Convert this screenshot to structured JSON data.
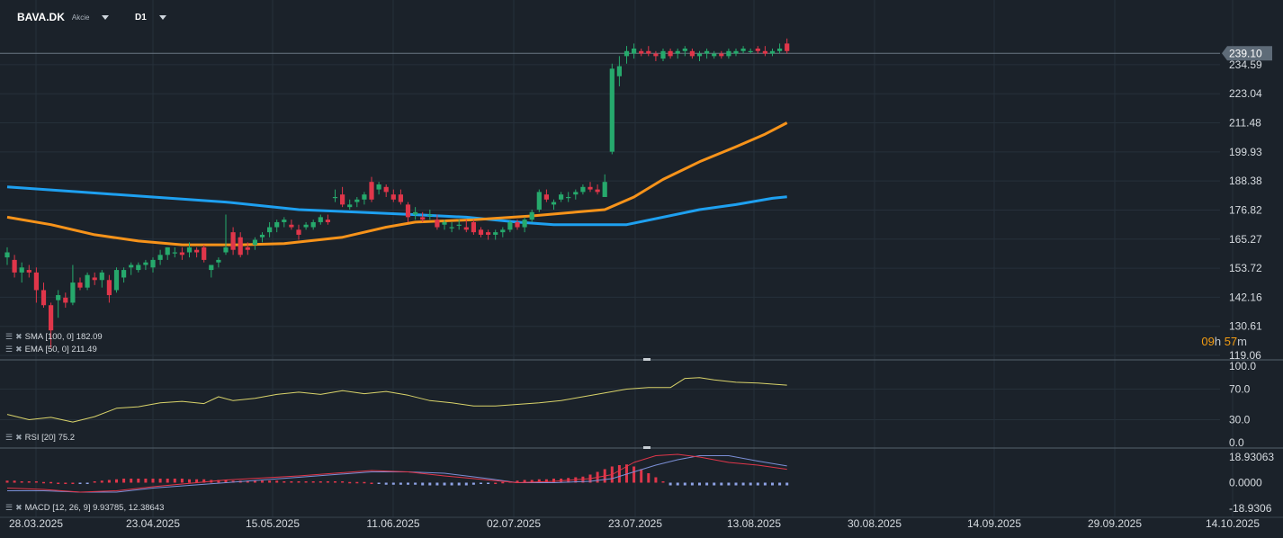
{
  "header": {
    "symbol": "BAVA.DK",
    "asset_type": "Akcie",
    "timeframe": "D1"
  },
  "timer": {
    "hours": "09",
    "h_unit": "h",
    "minutes": "57",
    "m_unit": "m"
  },
  "indicators": {
    "sma": "SMA [100, 0] 182.09",
    "ema": "EMA [50, 0] 211.49",
    "rsi": "RSI [20] 75.2",
    "macd": "MACD [12, 26, 9] 9.93785, 12.38643"
  },
  "colors": {
    "background": "#1b222a",
    "up": "#26a96c",
    "down": "#e0364a",
    "sma": "#1ea0f0",
    "ema": "#f7931a",
    "rsi": "#d9d36a",
    "macd_line": "#e0364a",
    "signal_line": "#7b8fd6",
    "hist_up": "#e0364a",
    "hist_down": "#8fa3e6",
    "price_label": "#5e6b78"
  },
  "chart_data": [
    {
      "type": "candlestick",
      "last_price": "239.10",
      "y_ticks": [
        "234.59",
        "223.04",
        "211.48",
        "199.93",
        "188.38",
        "176.82",
        "165.27",
        "153.72",
        "142.16",
        "130.61",
        "119.06"
      ],
      "ylim": [
        119.06,
        246
      ],
      "x_ticks": [
        "28.03.2025",
        "23.04.2025",
        "15.05.2025",
        "11.06.2025",
        "02.07.2025",
        "23.07.2025",
        "13.08.2025",
        "30.08.2025",
        "14.09.2025",
        "29.09.2025",
        "14.10.2025"
      ],
      "ohlc": [
        [
          158,
          162,
          155,
          160
        ],
        [
          157,
          159,
          150,
          152
        ],
        [
          152,
          156,
          148,
          154
        ],
        [
          153,
          155,
          150,
          152
        ],
        [
          152,
          154,
          140,
          145
        ],
        [
          145,
          148,
          138,
          139
        ],
        [
          139,
          140,
          122,
          129
        ],
        [
          141,
          145,
          134,
          143
        ],
        [
          142,
          144,
          138,
          140
        ],
        [
          140,
          155,
          139,
          148
        ],
        [
          148,
          150,
          145,
          146
        ],
        [
          146,
          152,
          145,
          151
        ],
        [
          150,
          152,
          147,
          149
        ],
        [
          149,
          153,
          146,
          152
        ],
        [
          149,
          151,
          140,
          143
        ],
        [
          145,
          154,
          144,
          153
        ],
        [
          150,
          154,
          148,
          153
        ],
        [
          154,
          156,
          151,
          155
        ],
        [
          153,
          156,
          152,
          155
        ],
        [
          155,
          157,
          153,
          156
        ],
        [
          154,
          158,
          152,
          157
        ],
        [
          157,
          161,
          155,
          159
        ],
        [
          159,
          162,
          157,
          162
        ],
        [
          160,
          162,
          158,
          160
        ],
        [
          160,
          162,
          157,
          159
        ],
        [
          160,
          164,
          158,
          162
        ],
        [
          161,
          162,
          158,
          160
        ],
        [
          162,
          163,
          156,
          157
        ],
        [
          153,
          155,
          150,
          155
        ],
        [
          156,
          158,
          154,
          157
        ],
        [
          160,
          175,
          159,
          162
        ],
        [
          168,
          170,
          159,
          161
        ],
        [
          166,
          168,
          158,
          159
        ],
        [
          162,
          164,
          159,
          161
        ],
        [
          163,
          166,
          161,
          165
        ],
        [
          166,
          168,
          164,
          167
        ],
        [
          168,
          172,
          166,
          170
        ],
        [
          170,
          173,
          168,
          172
        ],
        [
          172,
          174,
          170,
          173
        ],
        [
          171,
          173,
          169,
          170
        ],
        [
          169,
          171,
          165,
          167
        ],
        [
          170,
          172,
          169,
          171
        ],
        [
          170,
          173,
          169,
          172
        ],
        [
          172,
          175,
          171,
          174
        ],
        [
          173,
          175,
          171,
          172
        ],
        [
          182,
          185,
          180,
          182
        ],
        [
          183,
          186,
          178,
          179
        ],
        [
          178,
          181,
          177,
          179
        ],
        [
          180,
          182,
          178,
          181
        ],
        [
          181,
          184,
          179,
          183
        ],
        [
          188,
          190,
          180,
          181
        ],
        [
          185,
          188,
          183,
          187
        ],
        [
          186,
          187,
          182,
          184
        ],
        [
          183,
          185,
          180,
          181
        ],
        [
          183,
          185,
          179,
          180
        ],
        [
          179,
          180,
          172,
          174
        ],
        [
          175,
          178,
          173,
          176
        ],
        [
          174,
          176,
          172,
          173
        ],
        [
          175,
          177,
          173,
          175
        ],
        [
          173,
          175,
          169,
          170
        ],
        [
          171,
          173,
          169,
          172
        ],
        [
          170,
          172,
          168,
          170
        ],
        [
          171,
          173,
          169,
          171
        ],
        [
          170,
          173,
          168,
          169
        ],
        [
          172,
          173,
          167,
          168
        ],
        [
          169,
          170,
          166,
          167
        ],
        [
          168,
          169,
          165,
          167
        ],
        [
          167,
          169,
          165,
          168
        ],
        [
          168,
          170,
          166,
          169
        ],
        [
          169,
          173,
          168,
          172
        ],
        [
          172,
          173,
          169,
          170
        ],
        [
          170,
          174,
          168,
          173
        ],
        [
          173,
          177,
          172,
          176
        ],
        [
          177,
          185,
          176,
          184
        ],
        [
          183,
          185,
          180,
          181
        ],
        [
          179,
          181,
          177,
          180
        ],
        [
          181,
          184,
          180,
          183
        ],
        [
          182,
          184,
          180,
          182
        ],
        [
          183,
          185,
          181,
          184
        ],
        [
          184,
          187,
          183,
          186
        ],
        [
          186,
          188,
          184,
          185
        ],
        [
          185,
          187,
          183,
          184
        ],
        [
          182,
          191,
          182,
          188
        ],
        [
          200,
          235,
          199,
          233
        ],
        [
          230,
          238,
          226,
          234
        ],
        [
          238,
          242,
          235,
          240
        ],
        [
          239,
          243,
          237,
          241
        ],
        [
          240,
          241,
          238,
          239
        ],
        [
          240,
          242,
          238,
          239
        ],
        [
          239,
          240,
          236,
          238
        ],
        [
          237,
          241,
          236,
          240
        ],
        [
          240,
          241,
          237,
          238
        ],
        [
          239,
          241,
          237,
          240
        ],
        [
          240,
          242,
          238,
          241
        ],
        [
          240,
          241,
          237,
          238
        ],
        [
          238,
          240,
          236,
          239
        ],
        [
          239,
          241,
          237,
          240
        ],
        [
          238,
          240,
          237,
          239
        ],
        [
          239,
          240,
          237,
          238
        ],
        [
          238,
          241,
          237,
          240
        ],
        [
          239,
          241,
          238,
          240
        ],
        [
          240,
          242,
          239,
          241
        ],
        [
          240,
          241,
          239,
          240
        ],
        [
          241,
          242,
          239,
          240
        ],
        [
          240,
          242,
          238,
          239
        ],
        [
          239,
          241,
          238,
          240
        ],
        [
          240,
          243,
          239,
          241
        ],
        [
          243,
          245,
          239,
          240
        ]
      ],
      "series": [
        {
          "name": "SMA [100, 0]",
          "values": [
            [
              0,
              186
            ],
            [
              10,
              184
            ],
            [
              20,
              182
            ],
            [
              30,
              180
            ],
            [
              40,
              177
            ],
            [
              48,
              176
            ],
            [
              56,
              175
            ],
            [
              63,
              174
            ],
            [
              70,
              172
            ],
            [
              75,
              171
            ],
            [
              80,
              171
            ],
            [
              85,
              171
            ],
            [
              90,
              174
            ],
            [
              95,
              177
            ],
            [
              100,
              179
            ],
            [
              105,
              181.5
            ],
            [
              107,
              182.09
            ]
          ]
        },
        {
          "name": "EMA [50, 0]",
          "values": [
            [
              0,
              174
            ],
            [
              6,
              171
            ],
            [
              12,
              167
            ],
            [
              18,
              164.5
            ],
            [
              24,
              163
            ],
            [
              32,
              163
            ],
            [
              38,
              163.5
            ],
            [
              46,
              166
            ],
            [
              52,
              170
            ],
            [
              56,
              172
            ],
            [
              64,
              173
            ],
            [
              72,
              174.5
            ],
            [
              78,
              176
            ],
            [
              82,
              177
            ],
            [
              86,
              182
            ],
            [
              90,
              189
            ],
            [
              95,
              196
            ],
            [
              100,
              202
            ],
            [
              104,
              207
            ],
            [
              107,
              211.49
            ]
          ]
        }
      ]
    },
    {
      "type": "line",
      "name": "RSI [20]",
      "y_ticks": [
        "100.0",
        "70.0",
        "30.0",
        "0.0"
      ],
      "ylim": [
        0,
        100
      ],
      "values": [
        [
          0,
          37
        ],
        [
          3,
          30
        ],
        [
          6,
          33
        ],
        [
          9,
          27
        ],
        [
          12,
          34
        ],
        [
          15,
          45
        ],
        [
          18,
          47
        ],
        [
          21,
          52
        ],
        [
          24,
          54
        ],
        [
          27,
          51
        ],
        [
          29,
          60
        ],
        [
          31,
          55
        ],
        [
          34,
          58
        ],
        [
          37,
          63
        ],
        [
          40,
          66
        ],
        [
          43,
          63
        ],
        [
          46,
          68
        ],
        [
          49,
          64
        ],
        [
          52,
          67
        ],
        [
          55,
          62
        ],
        [
          58,
          55
        ],
        [
          61,
          52
        ],
        [
          64,
          48
        ],
        [
          67,
          48
        ],
        [
          70,
          50
        ],
        [
          73,
          52
        ],
        [
          76,
          55
        ],
        [
          79,
          60
        ],
        [
          82,
          65
        ],
        [
          85,
          70
        ],
        [
          88,
          72
        ],
        [
          91,
          72
        ],
        [
          93,
          84
        ],
        [
          95,
          85
        ],
        [
          97,
          82
        ],
        [
          100,
          79
        ],
        [
          103,
          78
        ],
        [
          107,
          75.2
        ]
      ]
    },
    {
      "type": "bar",
      "name": "MACD [12, 26, 9]",
      "y_ticks": [
        "18.93063",
        "0.0000",
        "-18.9306"
      ],
      "ylim": [
        -21,
        21
      ],
      "macd": [
        [
          0,
          -4
        ],
        [
          5,
          -5
        ],
        [
          10,
          -7
        ],
        [
          15,
          -6
        ],
        [
          20,
          -3
        ],
        [
          30,
          2
        ],
        [
          40,
          5
        ],
        [
          50,
          9
        ],
        [
          55,
          8
        ],
        [
          60,
          5
        ],
        [
          66,
          2
        ],
        [
          70,
          0
        ],
        [
          75,
          1
        ],
        [
          80,
          3
        ],
        [
          83,
          6
        ],
        [
          86,
          15
        ],
        [
          89,
          20
        ],
        [
          92,
          21
        ],
        [
          95,
          19
        ],
        [
          99,
          15
        ],
        [
          103,
          13
        ],
        [
          107,
          9.93785
        ]
      ],
      "signal": [
        [
          0,
          -6
        ],
        [
          5,
          -6
        ],
        [
          10,
          -7
        ],
        [
          15,
          -7
        ],
        [
          20,
          -4
        ],
        [
          30,
          0
        ],
        [
          40,
          4
        ],
        [
          50,
          8
        ],
        [
          55,
          8
        ],
        [
          60,
          7
        ],
        [
          66,
          3
        ],
        [
          70,
          0
        ],
        [
          75,
          0
        ],
        [
          80,
          1
        ],
        [
          83,
          3
        ],
        [
          86,
          8
        ],
        [
          89,
          13
        ],
        [
          92,
          17
        ],
        [
          95,
          20
        ],
        [
          99,
          20
        ],
        [
          103,
          16
        ],
        [
          107,
          12.38643
        ]
      ],
      "histogram": [
        1.5,
        1.5,
        1,
        1,
        1,
        0.5,
        0.5,
        0,
        0,
        0,
        -0.5,
        -0.5,
        1,
        1.5,
        2,
        2.5,
        3,
        3,
        3,
        3,
        3,
        3,
        3,
        3,
        3,
        2.5,
        2.5,
        2.5,
        2,
        2,
        2,
        1.5,
        1.5,
        1.5,
        1.5,
        1.5,
        1.5,
        1.5,
        1,
        1,
        1,
        1,
        1,
        1,
        1,
        1,
        1,
        0.5,
        0.5,
        0.5,
        0,
        -1,
        -1.5,
        -1.5,
        -1.5,
        -1.5,
        -1.5,
        -2,
        -2,
        -2,
        -2,
        -2,
        -2,
        -2,
        -1.5,
        -1,
        -0.5,
        0,
        0.5,
        1,
        1.5,
        2,
        2,
        2.5,
        2.5,
        3,
        3,
        3.5,
        4,
        4.5,
        6,
        8,
        10,
        12,
        13,
        13.5,
        12,
        10,
        7,
        4,
        1,
        -2,
        -2,
        -2,
        -2,
        -2,
        -2,
        -2,
        -2,
        -2,
        -2,
        -2,
        -2,
        -2,
        -2,
        -2,
        -2,
        -2
      ]
    }
  ]
}
